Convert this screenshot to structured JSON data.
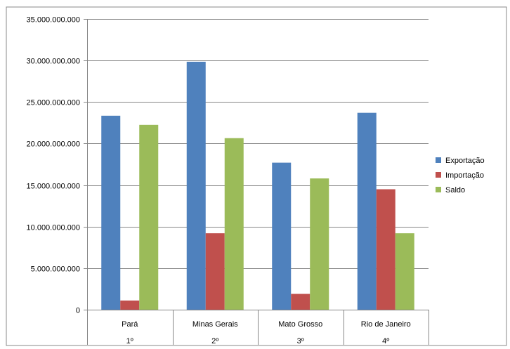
{
  "chart_data": {
    "type": "bar",
    "categories": [
      "Pará",
      "Minas Gerais",
      "Mato Grosso",
      "Rio de Janeiro"
    ],
    "category_ranks": [
      "1º",
      "2º",
      "3º",
      "4º"
    ],
    "series": [
      {
        "name": "Exportação",
        "color": "#4f81bd",
        "values": [
          23350000000,
          29850000000,
          17700000000,
          23700000000
        ]
      },
      {
        "name": "Importação",
        "color": "#c0504d",
        "values": [
          1100000000,
          9200000000,
          1900000000,
          14500000000
        ]
      },
      {
        "name": "Saldo",
        "color": "#9bbb59",
        "values": [
          22250000000,
          20650000000,
          15800000000,
          9200000000
        ]
      }
    ],
    "y_ticks": [
      "0",
      "5.000.000.000",
      "10.000.000.000",
      "15.000.000.000",
      "20.000.000.000",
      "25.000.000.000",
      "30.000.000.000",
      "35.000.000.000"
    ],
    "ylim": [
      0,
      35000000000
    ],
    "grid": true,
    "legend_position": "right"
  }
}
